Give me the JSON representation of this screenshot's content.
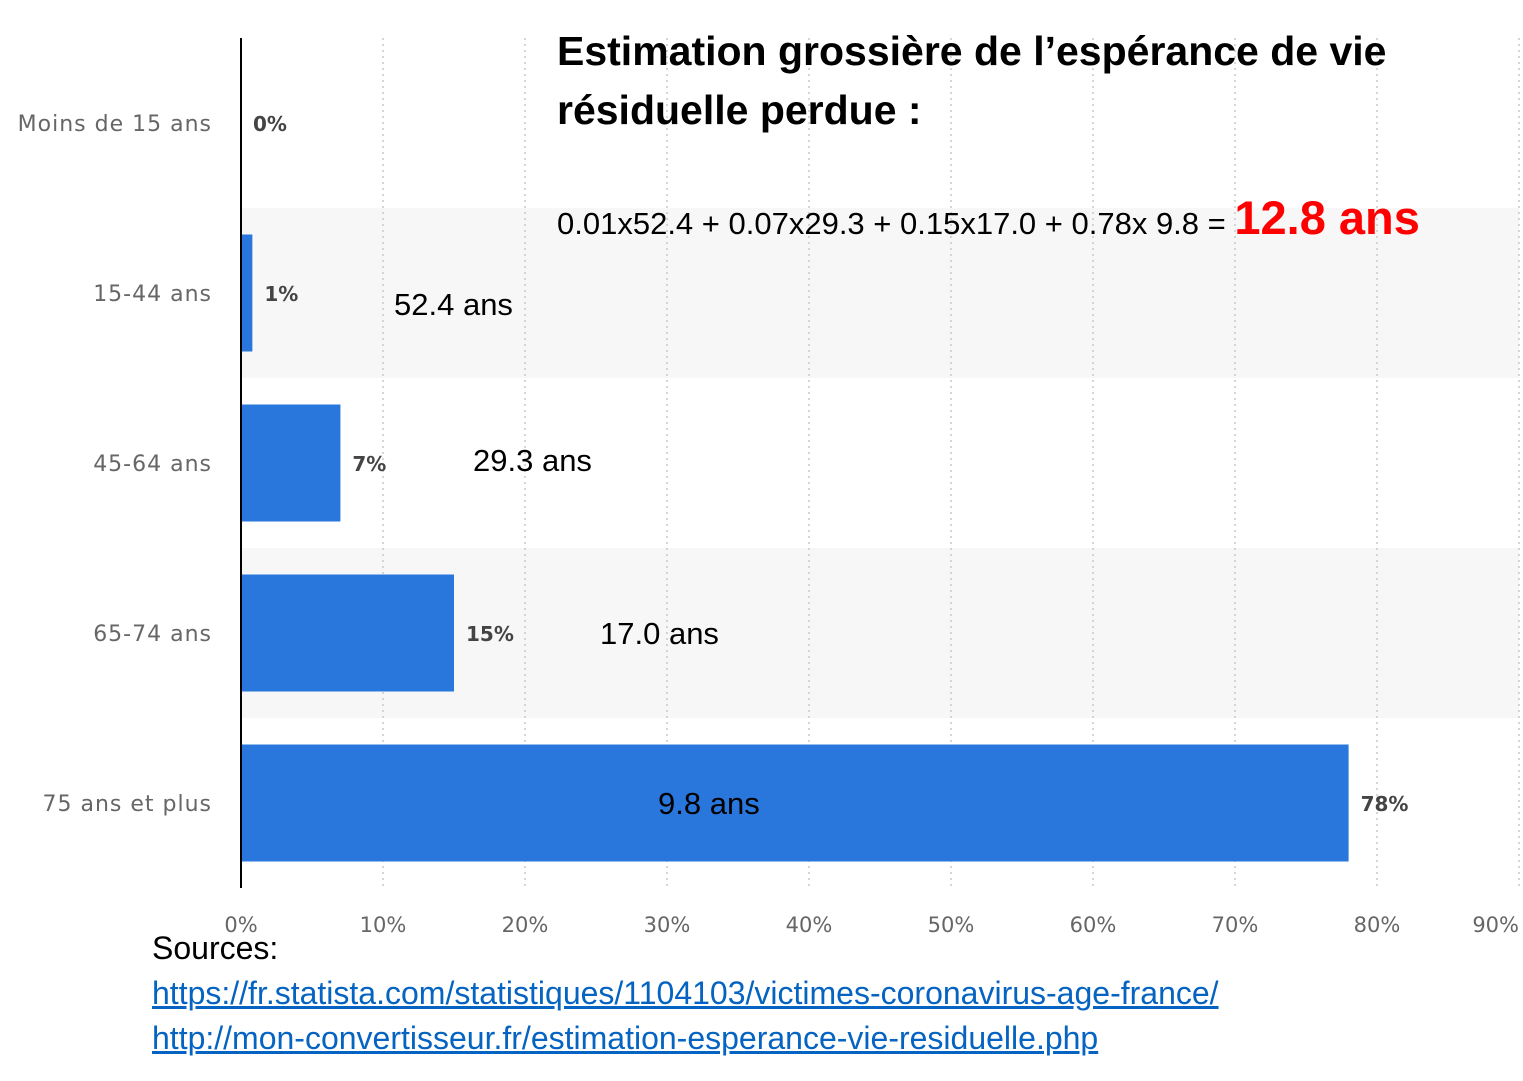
{
  "title_lines": [
    "Estimation grossière de l’espérance de vie",
    "résiduelle perdue :"
  ],
  "formula": {
    "expression": "0.01x52.4 + 0.07x29.3 + 0.15x17.0 + 0.78x 9.8 = ",
    "result": "12.8 ans"
  },
  "sources": {
    "heading": "Sources:",
    "links": [
      "https://fr.statista.com/statistiques/1104103/victimes-coronavirus-age-france/",
      "http://mon-convertisseur.fr/estimation-esperance-vie-residuelle.php"
    ]
  },
  "colors": {
    "bar": "#2977dc",
    "band": "#f7f7f7",
    "result": "#ff0000",
    "link": "#0563c1"
  },
  "chart_data": {
    "type": "bar",
    "orientation": "horizontal",
    "categories": [
      "Moins de 15 ans",
      "15-44 ans",
      "45-64 ans",
      "65-74 ans",
      "75 ans et plus"
    ],
    "values": [
      0,
      0.8,
      7,
      15,
      78
    ],
    "value_labels": [
      "0%",
      "1%",
      "7%",
      "15%",
      "78%"
    ],
    "annotations": [
      "",
      "52.4 ans",
      "29.3 ans",
      "17.0 ans",
      "9.8 ans"
    ],
    "xlim": [
      0,
      90
    ],
    "xticks": [
      "0%",
      "10%",
      "20%",
      "30%",
      "40%",
      "50%",
      "60%",
      "70%",
      "80%",
      "90%"
    ],
    "grid": "vertical dotted",
    "alternating_bands": true
  }
}
